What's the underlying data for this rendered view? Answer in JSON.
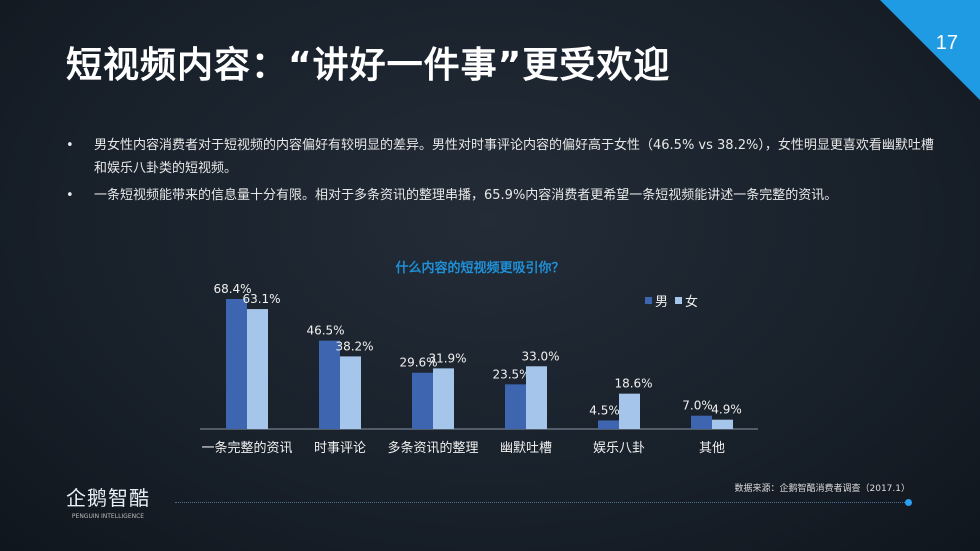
{
  "title": "短视频内容：“讲好一件事”更受欢迎",
  "page_number": "17",
  "bullets": [
    "男女性内容消费者对于短视频的内容偏好有较明显的差异。男性对时事评论内容的偏好高于女性（46.5% vs 38.2%），女性明显更喜欢看幽默吐槽和娱乐八卦类的短视频。",
    "一条短视频能带来的信息量十分有限。相对于多条资讯的整理串播，65.9%内容消费者更希望一条短视频能讲述一条完整的资讯。"
  ],
  "source": "数据来源：企鹅智酷消费者调查（2017.1）",
  "logo": {
    "name": "企鹅智酷",
    "tagline": "PENGUIN INTELLIGENCE"
  },
  "colors": {
    "accent": "#1f9be3",
    "male": "#3d65b0",
    "female": "#a5c6ea",
    "chart_title": "#1f8fd6"
  },
  "chart_data": {
    "type": "bar",
    "title": "什么内容的短视频更吸引你？",
    "categories": [
      "一条完整的资讯",
      "时事评论",
      "多条资讯的整理",
      "幽默吐槽",
      "娱乐八卦",
      "其他"
    ],
    "series": [
      {
        "name": "男",
        "values": [
          68.4,
          46.5,
          29.6,
          23.5,
          4.5,
          7.0
        ],
        "labels": [
          "68.4%",
          "46.5%",
          "29.6%",
          "23.5%",
          "4.5%",
          "7.0%"
        ]
      },
      {
        "name": "女",
        "values": [
          63.1,
          38.2,
          31.9,
          33.0,
          18.6,
          4.9
        ],
        "labels": [
          "63.1%",
          "38.2%",
          "31.9%",
          "33.0%",
          "18.6%",
          "4.9%"
        ]
      }
    ],
    "ylim": [
      0,
      70
    ],
    "grid": false,
    "legend": "top-right",
    "unit": "%"
  }
}
